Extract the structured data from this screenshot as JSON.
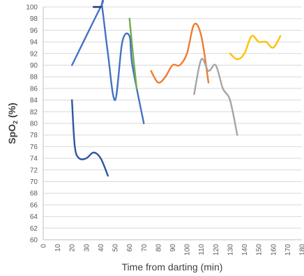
{
  "chart_data": {
    "type": "line",
    "title": "",
    "xlabel": "Time from darting (min)",
    "ylabel_main": "SpO",
    "ylabel_sub": "2",
    "ylabel_unit": " (%)",
    "xlim": [
      0,
      180
    ],
    "ylim": [
      60,
      100
    ],
    "x_ticks": [
      0,
      10,
      20,
      30,
      40,
      50,
      60,
      70,
      80,
      90,
      100,
      110,
      120,
      130,
      140,
      150,
      160,
      170,
      180
    ],
    "y_ticks": [
      60,
      62,
      64,
      66,
      68,
      70,
      72,
      74,
      76,
      78,
      80,
      82,
      84,
      86,
      88,
      90,
      92,
      94,
      96,
      98,
      100
    ],
    "grid": "horizontal",
    "series": [
      {
        "color": "#4472c4",
        "x": [
          20,
          40,
          41,
          45,
          50,
          55,
          60,
          62,
          70
        ],
        "y": [
          90,
          100,
          100,
          92,
          84,
          94,
          95,
          90,
          80
        ]
      },
      {
        "color": "#2f55a4",
        "x": [
          20,
          22,
          25,
          30,
          35,
          40,
          45
        ],
        "y": [
          84,
          76,
          74,
          74,
          75,
          74,
          71
        ]
      },
      {
        "color": "#1f3a7a",
        "x": [
          35,
          40
        ],
        "y": [
          100,
          100
        ]
      },
      {
        "color": "#70ad47",
        "x": [
          60,
          62,
          65
        ],
        "y": [
          98,
          93,
          86
        ]
      },
      {
        "color": "#ed7d31",
        "x": [
          75,
          80,
          85,
          90,
          95,
          100,
          105,
          110,
          115
        ],
        "y": [
          89,
          87,
          88,
          90,
          90,
          92,
          97,
          95,
          87
        ]
      },
      {
        "color": "#a5a5a5",
        "x": [
          105,
          110,
          115,
          120,
          125,
          130,
          135
        ],
        "y": [
          85,
          91,
          89,
          90,
          86,
          84,
          78
        ]
      },
      {
        "color": "#ffc000",
        "x": [
          130,
          135,
          140,
          145,
          150,
          155,
          160,
          165
        ],
        "y": [
          92,
          91,
          92,
          95,
          94,
          94,
          93,
          95
        ]
      }
    ]
  }
}
